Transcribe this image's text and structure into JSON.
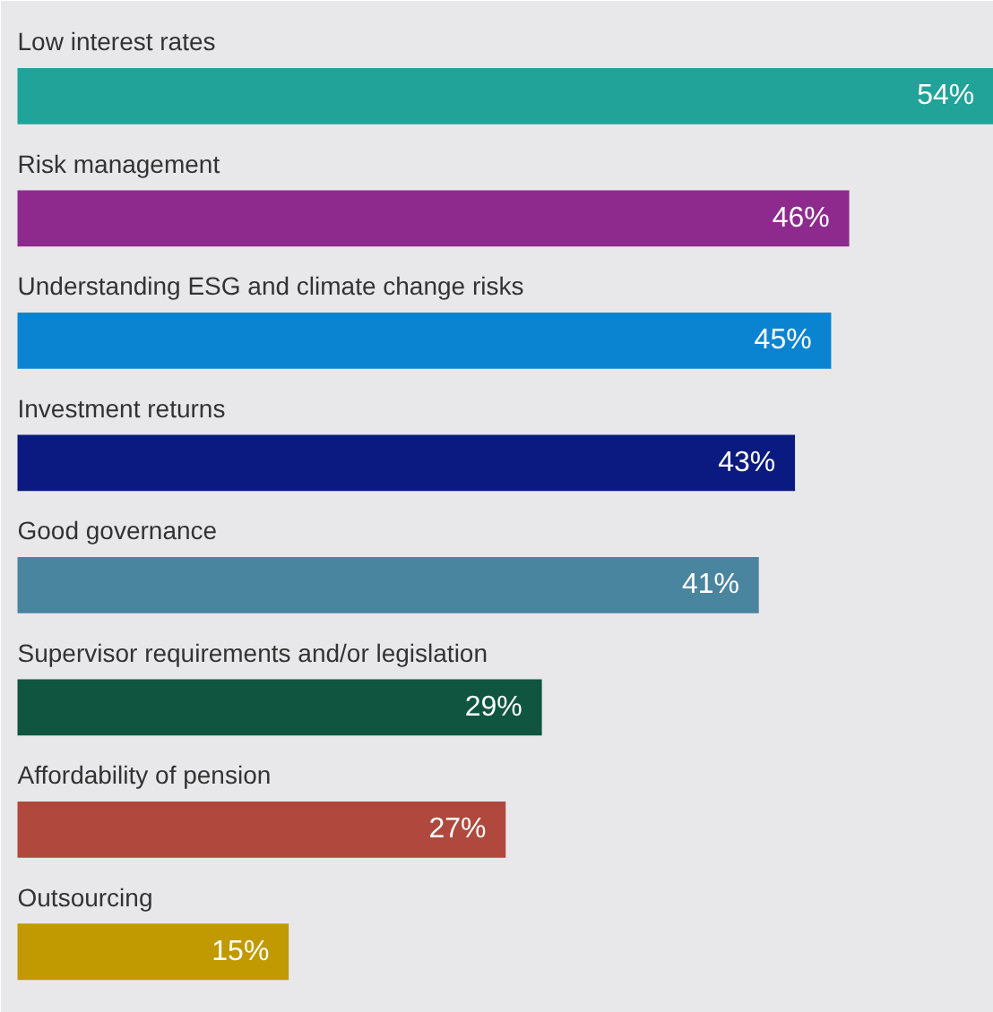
{
  "chart_data": {
    "type": "bar",
    "orientation": "horizontal",
    "value_labels": [
      "54%",
      "46%",
      "45%",
      "43%",
      "41%",
      "29%",
      "27%",
      "15%"
    ],
    "categories": [
      "Low interest rates",
      "Risk management",
      "Understanding ESG and climate change risks",
      "Investment returns",
      "Good governance",
      "Supervisor requirements and/or legislation",
      "Affordability of pension",
      "Outsourcing"
    ],
    "values": [
      54,
      46,
      45,
      43,
      41,
      29,
      27,
      15
    ],
    "colors": [
      "#21a39a",
      "#8e2a8e",
      "#0a84d0",
      "#0b1a80",
      "#4a85a0",
      "#0f5540",
      "#b0483d",
      "#c09a00"
    ]
  }
}
